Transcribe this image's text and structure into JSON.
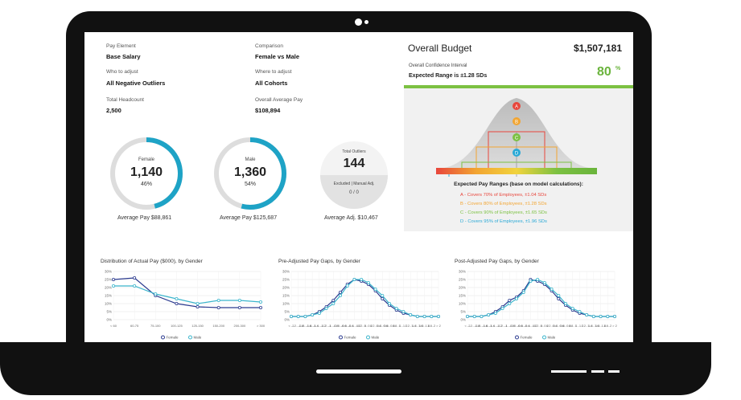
{
  "fields": {
    "pay_element": {
      "label": "Pay Element",
      "value": "Base Salary"
    },
    "comparison": {
      "label": "Comparison",
      "value": "Female vs Male"
    },
    "who_to_adjust": {
      "label": "Who to adjust",
      "value": "All Negative Outliers"
    },
    "where_to_adjust": {
      "label": "Where to adjust",
      "value": "All Cohorts"
    },
    "total_headcount": {
      "label": "Total Headcount",
      "value": "2,500"
    },
    "overall_average_pay": {
      "label": "Overall Average Pay",
      "value": "$108,894"
    }
  },
  "rings": {
    "female": {
      "title": "Female",
      "count": "1,140",
      "pct_label": "46%",
      "fraction": 0.46,
      "caption": "Average Pay $88,861"
    },
    "male": {
      "title": "Male",
      "count": "1,360",
      "pct_label": "54%",
      "fraction": 0.54,
      "caption": "Average Pay $125,687"
    },
    "outliers": {
      "title": "Total Outliers",
      "count": "144",
      "sub": "Excluded | Manual Adj.",
      "sub_value": "0 / 0",
      "caption": "Average Adj. $10,467"
    }
  },
  "budget": {
    "title": "Overall Budget",
    "amount": "$1,507,181",
    "ci_label": "Overall Confidence Interval",
    "ci_range": "Expected Range is  ±1.28 SDs",
    "ci_pct": "80",
    "ci_pct_sup": "%",
    "markers": [
      "A",
      "B",
      "C",
      "D"
    ],
    "marker_colors": [
      "#e8463c",
      "#f2a532",
      "#7cc142",
      "#2aa9d6"
    ],
    "ranges_title": "Expected Pay Ranges (base on model calculations):",
    "ranges": [
      {
        "text": "A - Covers 70% of Employees, ±1.04 SDs",
        "color": "#e8463c"
      },
      {
        "text": "B - Covers 80% of Employees, ±1.28 SDs",
        "color": "#f2a532"
      },
      {
        "text": "C - Covers 90% of Employees, ±1.65 SDs",
        "color": "#7cc142"
      },
      {
        "text": "D - Covers 95% of Employees, ±1.96 SDs",
        "color": "#2aa9d6"
      }
    ]
  },
  "colors": {
    "dark_series": "#2b3a8f",
    "light_series": "#3bb5cc",
    "ring_accent": "#1ea3c6",
    "ring_track": "#dddddd"
  },
  "chart_data": [
    {
      "type": "line",
      "title": "Distribution of Actual Pay ($000), by Gender",
      "categories": [
        "< 60",
        "60-75",
        "75-100",
        "100-125",
        "125-150",
        "150-200",
        "200-300",
        "> 300"
      ],
      "ylim": [
        0,
        30
      ],
      "y_ticks": [
        "30%",
        "25%",
        "20%",
        "15%",
        "10%",
        "5%",
        "0%"
      ],
      "grid": true,
      "legend": "bottom",
      "series": [
        {
          "name": "Female",
          "values": [
            25,
            26,
            15,
            10,
            8,
            7.5,
            7.5,
            7.5
          ]
        },
        {
          "name": "Male",
          "values": [
            21,
            21,
            16,
            13,
            10,
            12,
            12,
            11
          ]
        }
      ]
    },
    {
      "type": "line",
      "title": "Pre-Adjusted Pay Gaps, by Gender",
      "categories": [
        "< -2",
        "-2..-1.8",
        "-1.8..-1.6",
        "-1.6..-1.4",
        "-1.4..-1.2",
        "-1.2..-1",
        "-1..-0.8",
        "-0.8..-0.6",
        "-0.6..-0.4",
        "-0.4..-0.2",
        "-0.2..0",
        "0..0.2",
        "0.2..0.4",
        "0.4..0.6",
        "0.6..0.8",
        "0.8..1",
        "1..1.2",
        "1.2..1.4",
        "1.4..1.6",
        "1.6..1.8",
        "1.8..2",
        "> 2"
      ],
      "ylim": [
        0,
        30
      ],
      "y_ticks": [
        "30%",
        "25%",
        "20%",
        "15%",
        "10%",
        "5%",
        "0%"
      ],
      "grid": true,
      "legend": "bottom",
      "series": [
        {
          "name": "Female",
          "values": [
            2,
            2,
            2,
            3,
            5,
            8,
            12,
            17,
            22,
            25,
            24,
            22,
            18,
            13,
            9,
            6,
            4,
            3,
            2,
            2,
            2,
            2
          ]
        },
        {
          "name": "Male",
          "values": [
            2,
            2,
            2,
            3,
            4,
            7,
            10,
            15,
            21,
            25,
            25,
            23,
            19,
            15,
            10,
            7,
            5,
            3,
            2,
            2,
            2,
            2
          ]
        }
      ]
    },
    {
      "type": "line",
      "title": "Post-Adjusted Pay Gaps, by Gender",
      "categories": [
        "< -2",
        "-2..-1.8",
        "-1.8..-1.6",
        "-1.6..-1.4",
        "-1.4..-1.2",
        "-1.2..-1",
        "-1..-0.8",
        "-0.8..-0.6",
        "-0.6..-0.4",
        "-0.4..-0.2",
        "-0.2..0",
        "0..0.2",
        "0.2..0.4",
        "0.4..0.6",
        "0.6..0.8",
        "0.8..1",
        "1..1.2",
        "1.2..1.4",
        "1.4..1.6",
        "1.6..1.8",
        "1.8..2",
        "> 2"
      ],
      "ylim": [
        0,
        30
      ],
      "y_ticks": [
        "30%",
        "25%",
        "20%",
        "15%",
        "10%",
        "5%",
        "0%"
      ],
      "grid": true,
      "legend": "bottom",
      "series": [
        {
          "name": "Female",
          "values": [
            2,
            2,
            2,
            3,
            5,
            8,
            12,
            14,
            18,
            25,
            24,
            22,
            18,
            13,
            9,
            6,
            4,
            3,
            2,
            2,
            2,
            2
          ]
        },
        {
          "name": "Male",
          "values": [
            2,
            2,
            2,
            3,
            4,
            7,
            10,
            13,
            17,
            24,
            25,
            23,
            19,
            15,
            10,
            7,
            5,
            3,
            2,
            2,
            2,
            2
          ]
        }
      ]
    }
  ]
}
